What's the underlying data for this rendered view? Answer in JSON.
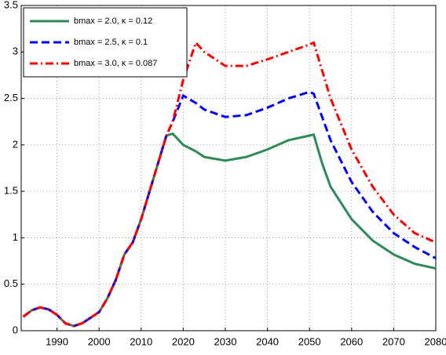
{
  "chart_data": {
    "type": "line",
    "x": [
      1982,
      1984,
      1986,
      1988,
      1990,
      1992,
      1994,
      1996,
      1998,
      2000,
      2002,
      2004,
      2006,
      2008,
      2010,
      2012,
      2014,
      2016,
      2017.5,
      2020,
      2023,
      2025,
      2030,
      2035,
      2040,
      2045,
      2050,
      2051,
      2053,
      2055,
      2060,
      2065,
      2070,
      2075,
      2080
    ],
    "series": [
      {
        "name": "bmax = 2.0, κ = 0.12",
        "color": "#2e8b57",
        "dash": "solid",
        "values": [
          0.15,
          0.22,
          0.25,
          0.23,
          0.17,
          0.08,
          0.05,
          0.08,
          0.14,
          0.2,
          0.35,
          0.55,
          0.82,
          0.95,
          1.2,
          1.5,
          1.8,
          2.1,
          2.12,
          2.0,
          1.93,
          1.87,
          1.83,
          1.87,
          1.95,
          2.05,
          2.1,
          2.11,
          1.8,
          1.55,
          1.2,
          0.97,
          0.82,
          0.72,
          0.67
        ]
      },
      {
        "name": "bmax = 2.5, κ = 0.1",
        "color": "#0000ff",
        "dash": "dashed",
        "values": [
          0.15,
          0.22,
          0.25,
          0.23,
          0.17,
          0.08,
          0.05,
          0.08,
          0.14,
          0.2,
          0.35,
          0.55,
          0.82,
          0.95,
          1.2,
          1.5,
          1.8,
          2.1,
          2.25,
          2.53,
          2.45,
          2.38,
          2.3,
          2.32,
          2.4,
          2.5,
          2.57,
          2.55,
          2.3,
          2.05,
          1.6,
          1.28,
          1.05,
          0.9,
          0.78
        ]
      },
      {
        "name": "bmax = 3.0, κ = 0.087",
        "color": "#ff0000",
        "dash": "dashdot",
        "values": [
          0.15,
          0.22,
          0.25,
          0.23,
          0.17,
          0.08,
          0.05,
          0.08,
          0.14,
          0.2,
          0.35,
          0.55,
          0.82,
          0.95,
          1.2,
          1.5,
          1.8,
          2.1,
          2.25,
          2.7,
          3.1,
          3.0,
          2.85,
          2.85,
          2.92,
          3.0,
          3.08,
          3.1,
          2.8,
          2.5,
          1.95,
          1.55,
          1.25,
          1.05,
          0.95
        ]
      }
    ],
    "xlim": [
      1981.5,
      2080
    ],
    "xticks": [
      1990,
      2000,
      2010,
      2020,
      2030,
      2040,
      2050,
      2060,
      2070,
      2080
    ],
    "ylim": [
      0,
      3.5
    ],
    "yticks": [
      0,
      0.5,
      1,
      1.5,
      2,
      2.5,
      3,
      3.5
    ],
    "grid": true,
    "legend": "upper left"
  }
}
